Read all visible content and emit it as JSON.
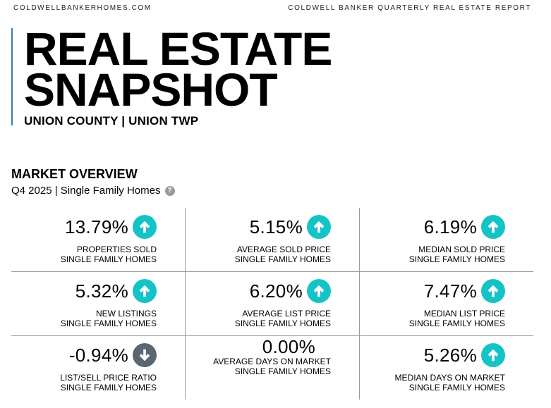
{
  "header": {
    "site": "COLDWELLBANKERHOMES.COM",
    "report": "COLDWELL BANKER QUARTERLY REAL ESTATE REPORT"
  },
  "title": {
    "line1": "REAL ESTATE",
    "line2": "SNAPSHOT",
    "location": "UNION COUNTY | UNION TWP"
  },
  "overview": {
    "heading": "MARKET OVERVIEW",
    "period": "Q4 2025 | Single Family Homes",
    "help_icon": "question-circle-icon"
  },
  "colors": {
    "up": "#14c3c7",
    "down": "#5c6670",
    "accent": "#3d7ab8"
  },
  "metrics": [
    {
      "value": "13.79%",
      "label1": "PROPERTIES SOLD",
      "label2": "SINGLE FAMILY HOMES",
      "trend": "up"
    },
    {
      "value": "5.15%",
      "label1": "AVERAGE SOLD PRICE",
      "label2": "SINGLE FAMILY HOMES",
      "trend": "up"
    },
    {
      "value": "6.19%",
      "label1": "MEDIAN SOLD PRICE",
      "label2": "SINGLE FAMILY HOMES",
      "trend": "up"
    },
    {
      "value": "5.32%",
      "label1": "NEW LISTINGS",
      "label2": "SINGLE FAMILY HOMES",
      "trend": "up"
    },
    {
      "value": "6.20%",
      "label1": "AVERAGE LIST PRICE",
      "label2": "SINGLE FAMILY HOMES",
      "trend": "up"
    },
    {
      "value": "7.47%",
      "label1": "MEDIAN LIST PRICE",
      "label2": "SINGLE FAMILY HOMES",
      "trend": "up"
    },
    {
      "value": "-0.94%",
      "label1": "LIST/SELL PRICE RATIO",
      "label2": "SINGLE FAMILY HOMES",
      "trend": "down"
    },
    {
      "value": "0.00%",
      "label1": "AVERAGE DAYS ON MARKET",
      "label2": "SINGLE FAMILY HOMES",
      "trend": "none"
    },
    {
      "value": "5.26%",
      "label1": "MEDIAN DAYS ON MARKET",
      "label2": "SINGLE FAMILY HOMES",
      "trend": "up"
    }
  ]
}
